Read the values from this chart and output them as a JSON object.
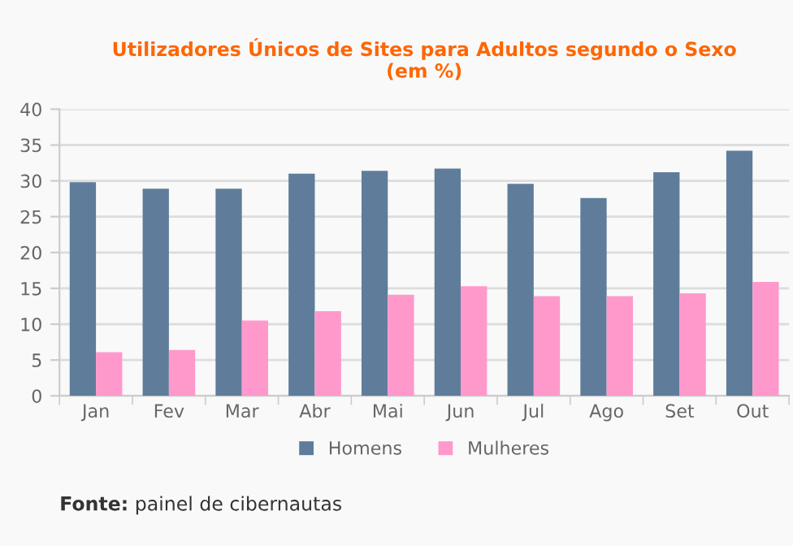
{
  "chart_data": {
    "type": "bar",
    "title": "Utilizadores Únicos de Sites para Adultos segundo o Sexo\n(em %)",
    "categories": [
      "Jan",
      "Fev",
      "Mar",
      "Abr",
      "Mai",
      "Jun",
      "Jul",
      "Ago",
      "Set",
      "Out"
    ],
    "series": [
      {
        "name": "Homens",
        "color": "#5f7d9b",
        "values": [
          29.8,
          28.9,
          28.9,
          31.0,
          31.4,
          31.7,
          29.6,
          27.6,
          31.2,
          34.2
        ]
      },
      {
        "name": "Mulheres",
        "color": "#ff99cc",
        "values": [
          6.1,
          6.4,
          10.5,
          11.8,
          14.1,
          15.3,
          13.9,
          13.9,
          14.3,
          15.9
        ]
      }
    ],
    "ylim": [
      0,
      40
    ],
    "yticks": [
      0,
      5,
      10,
      15,
      20,
      25,
      30,
      35,
      40
    ],
    "grid": "y",
    "legend": "bottom",
    "annotations": [
      "Fonte: painel de cibernautas"
    ]
  }
}
